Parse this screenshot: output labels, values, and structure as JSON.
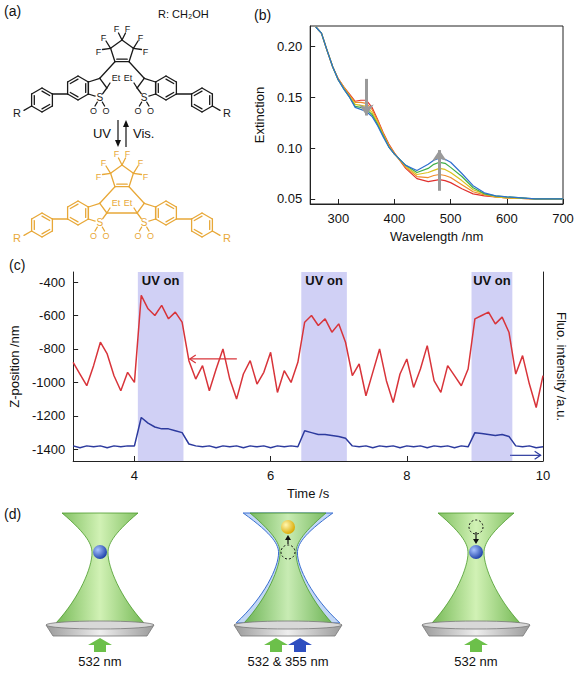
{
  "panel_a": {
    "label": "(a)",
    "substituent": "R: CH₂OH",
    "forward": "UV",
    "backward": "Vis.",
    "atoms": {
      "end_group": "R",
      "fluorine": "F",
      "ethyl": "Et",
      "sulfur": "S",
      "oxygen": "O"
    },
    "colors": {
      "open": "#1a1a1a",
      "closed": "#e8a838"
    }
  },
  "chart_data": [
    {
      "panel": "(b)",
      "type": "line",
      "x_label": "Wavelength /nm",
      "y_label": "Extinction",
      "xlim": [
        250,
        700
      ],
      "xticks": [
        300,
        400,
        500,
        600,
        700
      ],
      "ylim": [
        0.045,
        0.22
      ],
      "yticks": [
        0.05,
        {
          "value": 0.1,
          "label": "0.10"
        },
        0.15,
        {
          "value": 0.2,
          "label": "0.20"
        }
      ],
      "grid": false,
      "x": [
        260,
        270,
        280,
        290,
        300,
        310,
        320,
        330,
        340,
        350,
        360,
        370,
        380,
        390,
        400,
        420,
        440,
        460,
        470,
        480,
        490,
        500,
        520,
        540,
        560,
        580,
        600,
        650,
        700
      ],
      "series": [
        {
          "color": "#e0312f",
          "values": [
            0.219,
            0.213,
            0.196,
            0.18,
            0.168,
            0.16,
            0.153,
            0.146,
            0.147,
            0.147,
            0.14,
            0.128,
            0.115,
            0.104,
            0.095,
            0.08,
            0.07,
            0.067,
            0.068,
            0.069,
            0.068,
            0.066,
            0.06,
            0.055,
            0.053,
            0.052,
            0.051,
            0.05,
            0.05
          ]
        },
        {
          "color": "#f08c2a",
          "values": [
            0.219,
            0.213,
            0.196,
            0.18,
            0.168,
            0.16,
            0.152,
            0.145,
            0.145,
            0.144,
            0.138,
            0.127,
            0.114,
            0.103,
            0.095,
            0.081,
            0.072,
            0.071,
            0.073,
            0.074,
            0.073,
            0.071,
            0.064,
            0.057,
            0.054,
            0.052,
            0.051,
            0.05,
            0.05
          ]
        },
        {
          "color": "#d9c21c",
          "values": [
            0.219,
            0.213,
            0.196,
            0.18,
            0.167,
            0.159,
            0.151,
            0.143,
            0.142,
            0.141,
            0.135,
            0.125,
            0.113,
            0.102,
            0.094,
            0.082,
            0.074,
            0.076,
            0.078,
            0.08,
            0.079,
            0.076,
            0.068,
            0.059,
            0.055,
            0.052,
            0.051,
            0.05,
            0.05
          ]
        },
        {
          "color": "#3fae49",
          "values": [
            0.219,
            0.213,
            0.196,
            0.18,
            0.167,
            0.158,
            0.15,
            0.141,
            0.14,
            0.138,
            0.133,
            0.123,
            0.112,
            0.101,
            0.094,
            0.083,
            0.076,
            0.08,
            0.084,
            0.086,
            0.085,
            0.081,
            0.072,
            0.061,
            0.055,
            0.053,
            0.052,
            0.05,
            0.05
          ]
        },
        {
          "color": "#2f6fd0",
          "values": [
            0.219,
            0.213,
            0.196,
            0.18,
            0.167,
            0.158,
            0.15,
            0.14,
            0.138,
            0.136,
            0.131,
            0.122,
            0.111,
            0.101,
            0.094,
            0.083,
            0.078,
            0.084,
            0.088,
            0.09,
            0.089,
            0.086,
            0.075,
            0.063,
            0.056,
            0.053,
            0.052,
            0.05,
            0.05
          ]
        }
      ],
      "arrows": [
        {
          "x": 350,
          "from": 0.168,
          "to": 0.132
        },
        {
          "x": 480,
          "from": 0.058,
          "to": 0.098
        }
      ]
    },
    {
      "panel": "(c)",
      "type": "line",
      "x_label": "Time /s",
      "y_label": "Z-position /nm",
      "y2_label": "Fluo. intensity /a.u.",
      "xlim": [
        3.1,
        10
      ],
      "xticks": [
        4,
        6,
        8,
        10
      ],
      "ylim": [
        -1470,
        -340
      ],
      "yticks": [
        -1400,
        -1200,
        -1000,
        -800,
        -600,
        -400
      ],
      "y2lim": [
        0,
        100
      ],
      "grid": false,
      "x": [
        3.1,
        3.2,
        3.3,
        3.4,
        3.5,
        3.6,
        3.7,
        3.8,
        3.9,
        4.0,
        4.1,
        4.2,
        4.3,
        4.4,
        4.5,
        4.6,
        4.7,
        4.8,
        4.9,
        5.0,
        5.1,
        5.2,
        5.3,
        5.4,
        5.5,
        5.6,
        5.7,
        5.8,
        5.9,
        6.0,
        6.1,
        6.2,
        6.3,
        6.4,
        6.5,
        6.6,
        6.7,
        6.8,
        6.9,
        7.0,
        7.1,
        7.2,
        7.3,
        7.4,
        7.5,
        7.6,
        7.7,
        7.8,
        7.9,
        8.0,
        8.1,
        8.2,
        8.3,
        8.4,
        8.5,
        8.6,
        8.7,
        8.8,
        8.9,
        9.0,
        9.1,
        9.2,
        9.3,
        9.4,
        9.5,
        9.6,
        9.7,
        9.8,
        9.9,
        10.0
      ],
      "series": [
        {
          "color": "#d8343a",
          "values": [
            -880,
            -950,
            -1020,
            -900,
            -760,
            -830,
            -960,
            -1050,
            -940,
            -1000,
            -480,
            -560,
            -600,
            -540,
            -620,
            -580,
            -640,
            -870,
            -980,
            -900,
            -1050,
            -920,
            -800,
            -980,
            -1100,
            -950,
            -870,
            -1010,
            -940,
            -820,
            -1060,
            -930,
            -1000,
            -880,
            -640,
            -600,
            -660,
            -620,
            -700,
            -650,
            -760,
            -960,
            -890,
            -1080,
            -940,
            -800,
            -990,
            -1120,
            -950,
            -860,
            -1030,
            -920,
            -780,
            -990,
            -1060,
            -900,
            -960,
            -1020,
            -920,
            -620,
            -600,
            -580,
            -650,
            -610,
            -700,
            -950,
            -840,
            -1010,
            -1150,
            -960
          ]
        },
        {
          "color": "#2c3a9e",
          "axis": "y2",
          "values": [
            8,
            7,
            8,
            7.5,
            8,
            7,
            8,
            7.5,
            8,
            8,
            23,
            20,
            18,
            17,
            17,
            16,
            15,
            9,
            8,
            7.5,
            8,
            7,
            8,
            7.5,
            8,
            7,
            8,
            7.5,
            8,
            7,
            8,
            7.5,
            8,
            7.5,
            16,
            15,
            14,
            14,
            13.5,
            13,
            12,
            8,
            7.5,
            8,
            7,
            8,
            7.5,
            8,
            7,
            8,
            7.5,
            8,
            7,
            8,
            7.5,
            8,
            7,
            8,
            7.5,
            15,
            14.5,
            14,
            13.5,
            14,
            13,
            8,
            7.5,
            8,
            7,
            7.5
          ]
        }
      ],
      "regions": [
        {
          "label": "UV on",
          "x": [
            4.05,
            4.72
          ]
        },
        {
          "label": "UV on",
          "x": [
            6.45,
            7.12
          ]
        },
        {
          "label": "UV on",
          "x": [
            8.95,
            9.55
          ]
        }
      ]
    }
  ],
  "panel_d": {
    "label": "(d)",
    "captions": [
      "532 nm",
      "532 & 355 nm",
      "532 nm"
    ]
  }
}
